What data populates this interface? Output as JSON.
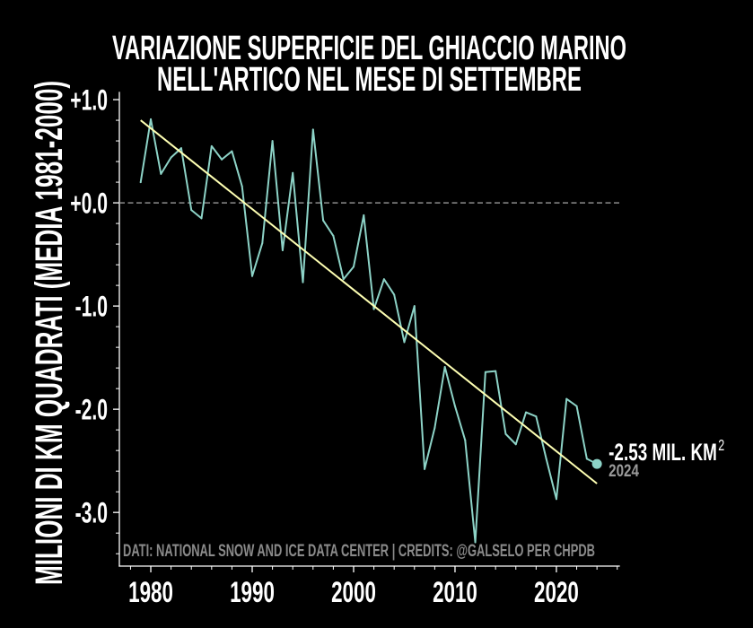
{
  "chart_data": {
    "type": "line",
    "title": [
      "VARIAZIONE SUPERFICIE DEL GHIACCIO MARINO",
      "NELL'ARTICO NEL MESE DI SETTEMBRE"
    ],
    "ylabel": "MILIONI DI KM QUADRATI (MEDIA 1981-2000)",
    "xlim": [
      1976.9,
      2026.2
    ],
    "ylim": [
      -3.52,
      1.07
    ],
    "x_ticks": [
      1980,
      1990,
      2000,
      2010,
      2020
    ],
    "x_tick_labels": [
      "1980",
      "1990",
      "2000",
      "2010",
      "2020"
    ],
    "y_ticks": [
      1,
      0,
      -1,
      -2,
      -3
    ],
    "y_tick_labels": [
      "+1.0",
      "+0.0",
      "-1.0",
      "-2.0",
      "-3.0"
    ],
    "grid": false,
    "reference_line_y": 0,
    "series": [
      {
        "color": "#8dd3c7",
        "x": [
          1979,
          1980,
          1981,
          1982,
          1983,
          1984,
          1985,
          1986,
          1987,
          1988,
          1989,
          1990,
          1991,
          1992,
          1993,
          1994,
          1995,
          1996,
          1997,
          1998,
          1999,
          2000,
          2001,
          2002,
          2003,
          2004,
          2005,
          2006,
          2007,
          2008,
          2009,
          2010,
          2011,
          2012,
          2013,
          2014,
          2015,
          2016,
          2017,
          2018,
          2019,
          2020,
          2021,
          2022,
          2023,
          2024
        ],
        "y": [
          0.2,
          0.81,
          0.28,
          0.44,
          0.53,
          -0.07,
          -0.15,
          0.55,
          0.42,
          0.5,
          0.16,
          -0.71,
          -0.39,
          0.6,
          -0.46,
          0.29,
          -0.77,
          0.71,
          -0.17,
          -0.32,
          -0.74,
          -0.62,
          -0.12,
          -1.03,
          -0.74,
          -0.89,
          -1.35,
          -1.0,
          -2.58,
          -2.18,
          -1.59,
          -1.97,
          -2.3,
          -3.29,
          -1.64,
          -1.63,
          -2.24,
          -2.34,
          -2.03,
          -2.07,
          -2.48,
          -2.87,
          -1.9,
          -1.97,
          -2.48,
          -2.53
        ]
      }
    ],
    "trend_line": {
      "color": "#feffb3",
      "x": [
        1979,
        2024
      ],
      "y": [
        0.8,
        -2.72
      ]
    },
    "annotation": {
      "x": 2024,
      "y": -2.53,
      "value_text": "-2.53 MIL. KM",
      "unit_sup": "2",
      "year_text": "2024"
    },
    "source_note": "DATI: NATIONAL SNOW AND ICE DATA CENTER | CREDITS: @GALSELO PER CHPDB"
  },
  "colors": {
    "background": "#000000",
    "text": "#ffffff",
    "reference_line": "#8c8c8c",
    "muted_text": "#8a8a8a",
    "year_text": "#9a9a9a"
  }
}
